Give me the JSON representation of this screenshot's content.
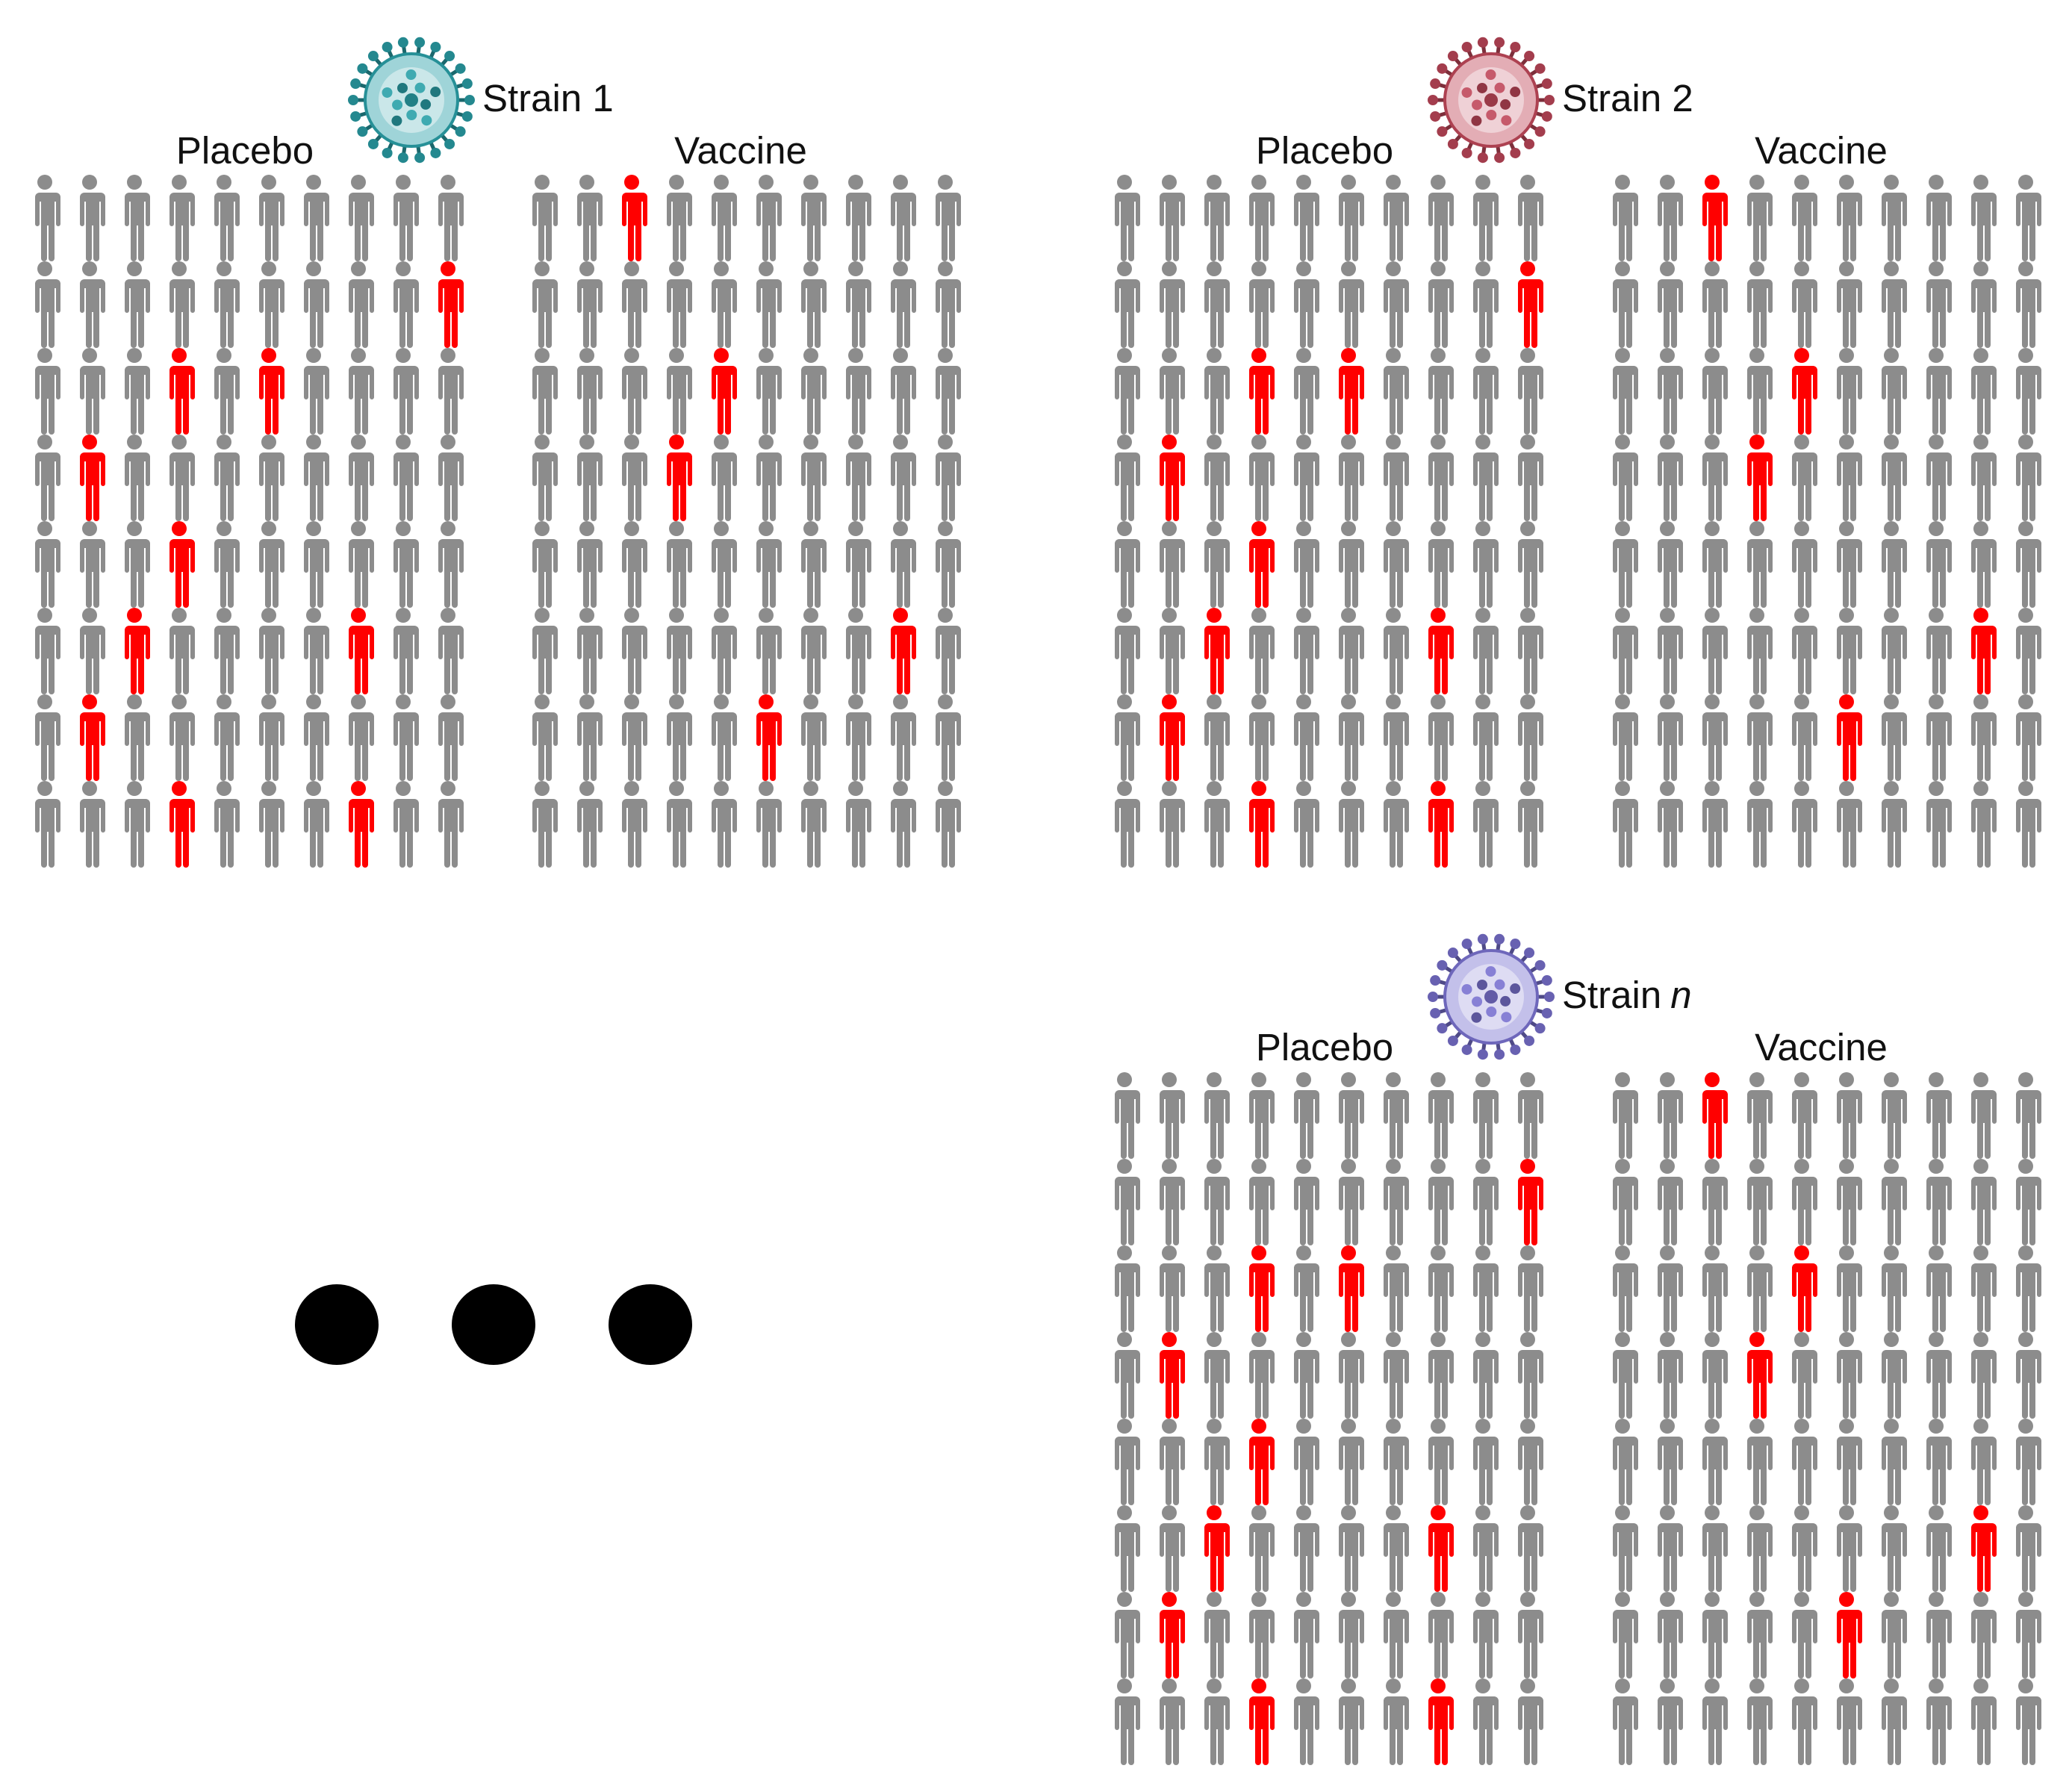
{
  "colors": {
    "unaffected": "#8c8c8c",
    "infected": "#ff0000",
    "background": "#ffffff",
    "ellipsis": "#000000"
  },
  "grid": {
    "rows": 8,
    "cols": 10
  },
  "panels": [
    {
      "strain_label": "Strain 1",
      "strain_suffix": "",
      "virus_icon": "teal-virus-icon",
      "virus_color": "#2aa0a8",
      "groups": [
        {
          "label": "Placebo",
          "infected_cells": [
            [
              1,
              9
            ],
            [
              2,
              3
            ],
            [
              2,
              5
            ],
            [
              3,
              1
            ],
            [
              4,
              3
            ],
            [
              5,
              2
            ],
            [
              5,
              7
            ],
            [
              6,
              1
            ],
            [
              7,
              3
            ],
            [
              7,
              7
            ]
          ]
        },
        {
          "label": "Vaccine",
          "infected_cells": [
            [
              0,
              2
            ],
            [
              2,
              4
            ],
            [
              3,
              3
            ],
            [
              5,
              8
            ],
            [
              6,
              5
            ]
          ]
        }
      ]
    },
    {
      "strain_label": "Strain 2",
      "strain_suffix": "",
      "virus_icon": "red-virus-icon",
      "virus_color": "#c0485a",
      "groups": [
        {
          "label": "Placebo",
          "infected_cells": [
            [
              1,
              9
            ],
            [
              2,
              3
            ],
            [
              2,
              5
            ],
            [
              3,
              1
            ],
            [
              4,
              3
            ],
            [
              5,
              2
            ],
            [
              5,
              7
            ],
            [
              6,
              1
            ],
            [
              7,
              3
            ],
            [
              7,
              7
            ]
          ]
        },
        {
          "label": "Vaccine",
          "infected_cells": [
            [
              0,
              2
            ],
            [
              2,
              4
            ],
            [
              3,
              3
            ],
            [
              5,
              8
            ],
            [
              6,
              5
            ]
          ]
        }
      ]
    },
    {
      "strain_label": "Strain",
      "strain_suffix": "n",
      "virus_icon": "purple-virus-icon",
      "virus_color": "#7a72d0",
      "groups": [
        {
          "label": "Placebo",
          "infected_cells": [
            [
              1,
              9
            ],
            [
              2,
              3
            ],
            [
              2,
              5
            ],
            [
              3,
              1
            ],
            [
              4,
              3
            ],
            [
              5,
              2
            ],
            [
              5,
              7
            ],
            [
              6,
              1
            ],
            [
              7,
              3
            ],
            [
              7,
              7
            ]
          ]
        },
        {
          "label": "Vaccine",
          "infected_cells": [
            [
              0,
              2
            ],
            [
              2,
              4
            ],
            [
              3,
              3
            ],
            [
              5,
              8
            ],
            [
              6,
              5
            ]
          ]
        }
      ]
    }
  ],
  "ellipsis": {
    "count": 3
  }
}
